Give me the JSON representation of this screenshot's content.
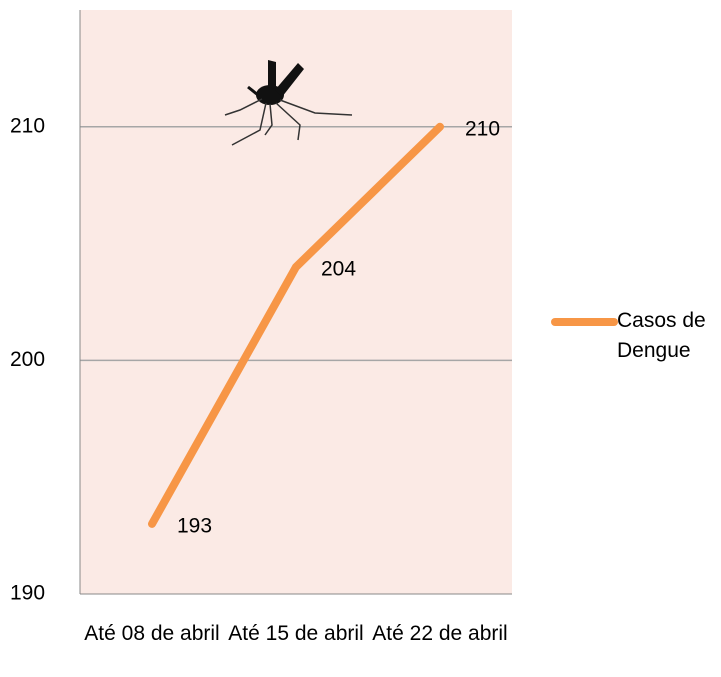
{
  "chart_data": {
    "type": "line",
    "categories": [
      "Até 08 de abril",
      "Até 15 de abril",
      "Até 22 de abril"
    ],
    "series": [
      {
        "name": "Casos de Dengue",
        "color": "#f79646",
        "values": [
          193,
          204,
          210
        ]
      }
    ],
    "ylim": [
      190,
      215
    ],
    "yticks": [
      190,
      200,
      210
    ],
    "grid": true,
    "legend": "right",
    "plot_background": "#fbeae5"
  }
}
